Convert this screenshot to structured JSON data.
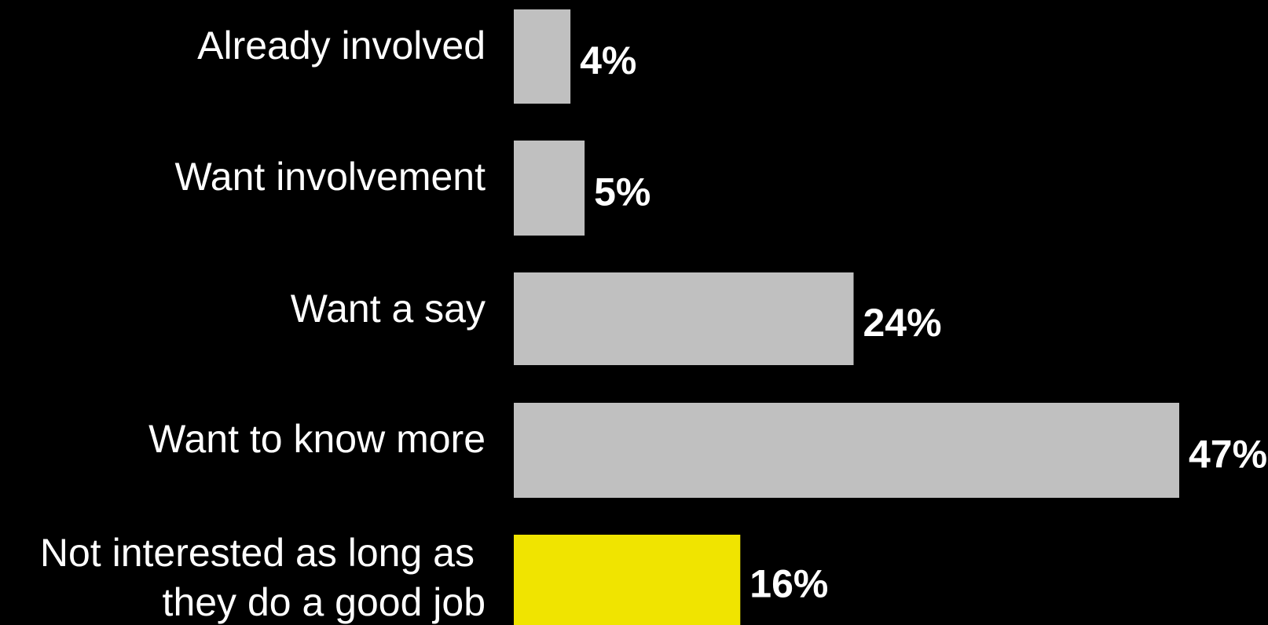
{
  "chart_data": {
    "type": "bar",
    "orientation": "horizontal",
    "categories": [
      [
        "Already involved"
      ],
      [
        "Want involvement"
      ],
      [
        "Want a say"
      ],
      [
        "Want to know more"
      ],
      [
        "Not interested as long as",
        "they do a good job"
      ]
    ],
    "values": [
      4,
      5,
      24,
      47,
      16
    ],
    "value_labels": [
      "4%",
      "5%",
      "24%",
      "47%",
      "16%"
    ],
    "bar_colors": [
      "#c0c0c0",
      "#c0c0c0",
      "#c0c0c0",
      "#c0c0c0",
      "#f0e400"
    ],
    "label_color": "#ffffff",
    "background": "#000000",
    "xlim": [
      0,
      47
    ],
    "grid": false,
    "legend": "none"
  }
}
